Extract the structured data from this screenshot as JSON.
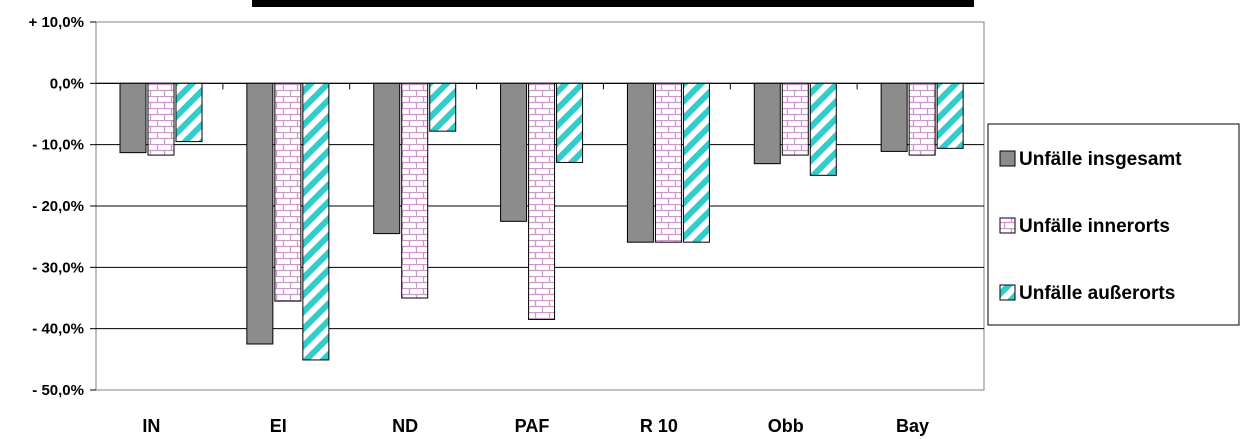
{
  "chart_data": {
    "type": "bar",
    "categories": [
      "IN",
      "EI",
      "ND",
      "PAF",
      "R 10",
      "Obb",
      "Bay"
    ],
    "series": [
      {
        "name": "Unfälle insgesamt",
        "values": [
          -11.3,
          -42.5,
          -24.5,
          -22.5,
          -25.9,
          -13.1,
          -11.1
        ],
        "color": "#8c8c8c",
        "pattern": "solid"
      },
      {
        "name": "Unfälle innerorts",
        "values": [
          -11.7,
          -35.5,
          -35.0,
          -38.5,
          -25.9,
          -11.7,
          -11.7
        ],
        "color": "#cc99cc",
        "pattern": "brick"
      },
      {
        "name": "Unfälle außerorts",
        "values": [
          -9.5,
          -45.1,
          -7.8,
          -12.9,
          -25.9,
          -15.0,
          -10.6
        ],
        "color": "#33cccc",
        "pattern": "diagonal-stripes"
      }
    ],
    "ylim": [
      -50,
      10
    ],
    "yticks": [
      10,
      0,
      -10,
      -20,
      -30,
      -40,
      -50
    ],
    "ytick_labels": [
      "+ 10,0%",
      "0,0%",
      "- 10,0%",
      "- 20,0%",
      "- 30,0%",
      "- 40,0%",
      "- 50,0%"
    ],
    "grid": true,
    "legend_position": "right"
  }
}
